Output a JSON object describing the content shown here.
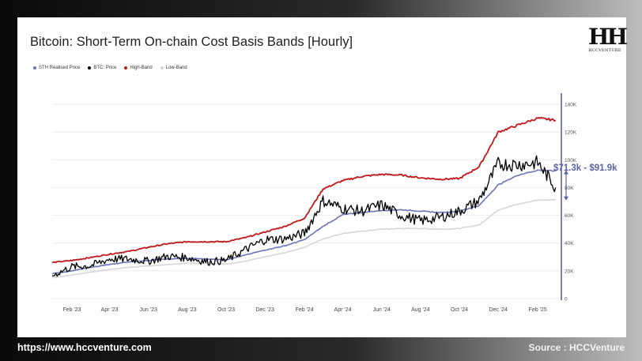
{
  "title": "Bitcoin: Short-Term On-chain Cost Basis Bands [Hourly]",
  "logo": {
    "mark": "HH",
    "subtitle": "HCCVENTURE"
  },
  "footer": {
    "url": "https://www.hccventure.com",
    "source": "Source : HCCVenture"
  },
  "colors": {
    "sth": "#6b74b8",
    "price": "#000000",
    "high": "#c01818",
    "low": "#d6d6d6",
    "annotation": "#5b63a8"
  },
  "chart_data": {
    "type": "line",
    "legend": [
      "STH Realised Price",
      "BTC: Price",
      "High-Band",
      "Low-Band"
    ],
    "x_ticks": [
      "Feb '23",
      "Apr '23",
      "Jun '23",
      "Aug '23",
      "Oct '23",
      "Dec '23",
      "Feb '24",
      "Apr '24",
      "Jun '24",
      "Aug '24",
      "Oct '24",
      "Dec '24",
      "Feb '25"
    ],
    "y_ticks": [
      "0",
      "20K",
      "40K",
      "60K",
      "80K",
      "100K",
      "120K",
      "140K"
    ],
    "ylim": [
      0,
      140000
    ],
    "annotation": "$71.3k - $91.9k",
    "x": [
      "2023-01-01",
      "2023-02-01",
      "2023-03-01",
      "2023-04-01",
      "2023-05-01",
      "2023-06-01",
      "2023-07-01",
      "2023-08-01",
      "2023-09-01",
      "2023-10-01",
      "2023-11-01",
      "2023-12-01",
      "2024-01-01",
      "2024-02-01",
      "2024-03-01",
      "2024-04-01",
      "2024-05-01",
      "2024-06-01",
      "2024-07-01",
      "2024-08-01",
      "2024-09-01",
      "2024-10-01",
      "2024-11-01",
      "2024-12-01",
      "2025-01-01",
      "2025-02-01",
      "2025-03-01"
    ],
    "series": [
      {
        "name": "STH Realised Price",
        "values": [
          18000,
          20000,
          22500,
          24500,
          26500,
          27500,
          28500,
          29000,
          28500,
          28000,
          31500,
          35000,
          38000,
          42500,
          52000,
          60500,
          62000,
          63500,
          64000,
          63000,
          62000,
          63000,
          67000,
          82000,
          89000,
          92500,
          91900
        ]
      },
      {
        "name": "BTC: Price",
        "values": [
          16500,
          23000,
          23500,
          28500,
          28500,
          27000,
          30500,
          29500,
          26500,
          27500,
          35500,
          42500,
          43000,
          47000,
          70500,
          65000,
          63000,
          67500,
          60000,
          56000,
          58500,
          63000,
          70500,
          97000,
          96500,
          98000,
          80000
        ]
      },
      {
        "name": "High-Band",
        "values": [
          26000,
          27500,
          29500,
          32000,
          34000,
          37000,
          39500,
          41000,
          41000,
          41000,
          44000,
          48000,
          52000,
          58000,
          79000,
          85000,
          88000,
          89500,
          89000,
          87000,
          86000,
          86500,
          95000,
          120000,
          125000,
          130000,
          128500
        ]
      },
      {
        "name": "Low-Band",
        "values": [
          15000,
          17000,
          19000,
          21000,
          22500,
          23500,
          24500,
          25500,
          25500,
          25000,
          27000,
          30000,
          33000,
          37000,
          43000,
          47000,
          48500,
          50000,
          50500,
          50500,
          50000,
          50500,
          53000,
          64000,
          68000,
          71000,
          71300
        ]
      }
    ]
  }
}
